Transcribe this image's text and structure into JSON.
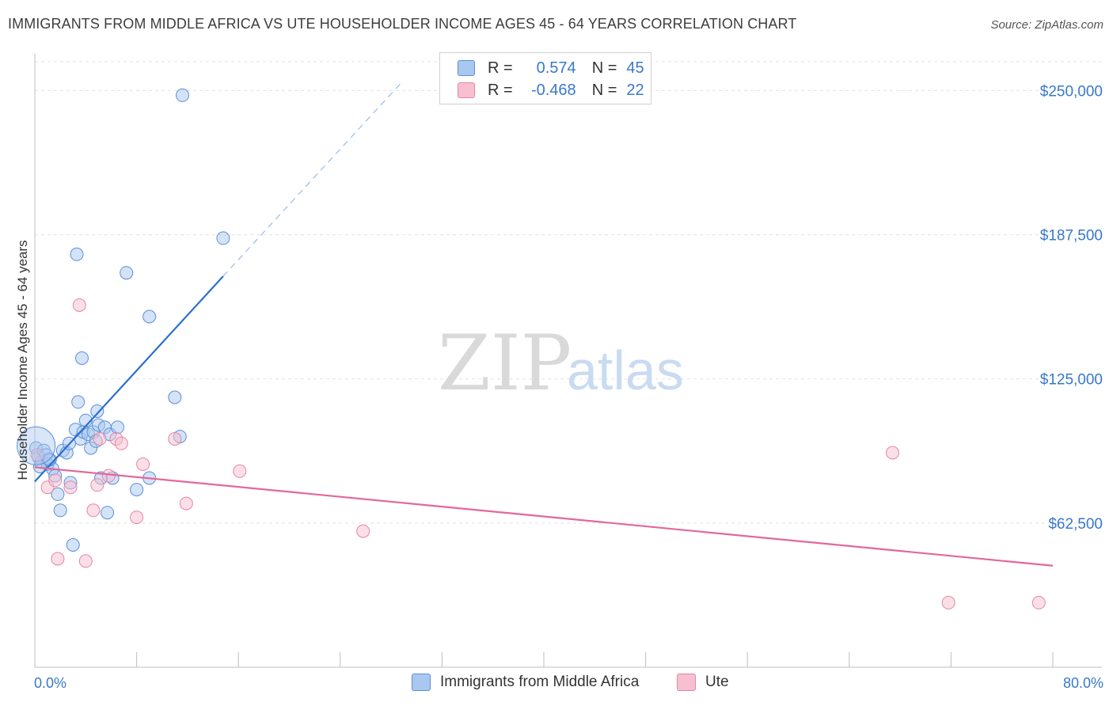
{
  "header": {
    "title": "IMMIGRANTS FROM MIDDLE AFRICA VS UTE HOUSEHOLDER INCOME AGES 45 - 64 YEARS CORRELATION CHART",
    "source": "Source: ZipAtlas.com"
  },
  "watermark": {
    "zip": "ZIP",
    "atlas": "atlas"
  },
  "legend": {
    "rows": [
      {
        "r_label": "R =",
        "r_value": "0.574",
        "n_label": "N =",
        "n_value": "45",
        "color": "#a9c8f0",
        "border": "#5b8fd6"
      },
      {
        "r_label": "R =",
        "r_value": "-0.468",
        "n_label": "N =",
        "n_value": "22",
        "color": "#f7bfd0",
        "border": "#e486a6"
      }
    ]
  },
  "bottom_legend": {
    "items": [
      {
        "label": "Immigrants from Middle Africa",
        "color": "#a9c8f0",
        "border": "#5b8fd6"
      },
      {
        "label": "Ute",
        "color": "#f7bfd0",
        "border": "#e486a6"
      }
    ]
  },
  "chart_data": {
    "type": "scatter",
    "title": "IMMIGRANTS FROM MIDDLE AFRICA VS UTE HOUSEHOLDER INCOME AGES 45 - 64 YEARS CORRELATION CHART",
    "xlabel": "",
    "ylabel": "Householder Income Ages 45 - 64 years",
    "xlim": [
      0,
      80
    ],
    "ylim": [
      0,
      262500
    ],
    "x_tick_labels": [
      "0.0%",
      "80.0%"
    ],
    "y_ticks": [
      62500,
      125000,
      187500,
      250000
    ],
    "y_tick_labels": [
      "$62,500",
      "$125,000",
      "$187,500",
      "$250,000"
    ],
    "grid": true,
    "series": [
      {
        "name": "Immigrants from Middle Africa",
        "color": "#a9c8f0",
        "stroke": "#5b8fd6",
        "points": [
          [
            0.1,
            95000
          ],
          [
            0.3,
            91000
          ],
          [
            0.5,
            89000
          ],
          [
            0.7,
            94000
          ],
          [
            0.9,
            92000
          ],
          [
            1.0,
            88000
          ],
          [
            1.2,
            90000
          ],
          [
            1.4,
            86000
          ],
          [
            1.6,
            83000
          ],
          [
            1.8,
            75000
          ],
          [
            2.0,
            68000
          ],
          [
            2.2,
            94000
          ],
          [
            2.5,
            93000
          ],
          [
            2.8,
            80000
          ],
          [
            3.0,
            53000
          ],
          [
            3.2,
            103000
          ],
          [
            3.4,
            115000
          ],
          [
            3.6,
            99000
          ],
          [
            3.8,
            102000
          ],
          [
            4.0,
            107000
          ],
          [
            4.2,
            101000
          ],
          [
            4.4,
            95000
          ],
          [
            3.3,
            179000
          ],
          [
            3.7,
            134000
          ],
          [
            4.6,
            102000
          ],
          [
            4.9,
            111000
          ],
          [
            5.0,
            105000
          ],
          [
            5.2,
            82000
          ],
          [
            5.5,
            104000
          ],
          [
            5.7,
            67000
          ],
          [
            5.9,
            101000
          ],
          [
            6.1,
            82000
          ],
          [
            6.5,
            104000
          ],
          [
            7.2,
            171000
          ],
          [
            8.0,
            77000
          ],
          [
            9.0,
            152000
          ],
          [
            9.0,
            82000
          ],
          [
            11.0,
            117000
          ],
          [
            11.4,
            100000
          ],
          [
            11.6,
            248000
          ],
          [
            14.8,
            186000
          ],
          [
            0.4,
            87000
          ],
          [
            1.1,
            90000
          ],
          [
            2.7,
            97000
          ],
          [
            4.8,
            98000
          ]
        ]
      },
      {
        "name": "Ute",
        "color": "#f7bfd0",
        "stroke": "#e486a6",
        "points": [
          [
            0.2,
            92000
          ],
          [
            1.0,
            78000
          ],
          [
            1.6,
            81000
          ],
          [
            1.8,
            47000
          ],
          [
            2.8,
            78000
          ],
          [
            3.5,
            157000
          ],
          [
            4.0,
            46000
          ],
          [
            4.6,
            68000
          ],
          [
            4.9,
            79000
          ],
          [
            5.1,
            99000
          ],
          [
            5.8,
            83000
          ],
          [
            6.4,
            99000
          ],
          [
            6.8,
            97000
          ],
          [
            8.0,
            65000
          ],
          [
            8.5,
            88000
          ],
          [
            11.0,
            99000
          ],
          [
            11.9,
            71000
          ],
          [
            16.1,
            85000
          ],
          [
            25.8,
            59000
          ],
          [
            67.4,
            93000
          ],
          [
            71.8,
            28000
          ],
          [
            78.9,
            28000
          ]
        ]
      }
    ],
    "trendlines": [
      {
        "series": "Immigrants from Middle Africa",
        "x": [
          0,
          14.8
        ],
        "y": [
          80500,
          169500
        ],
        "dashed_extension_to": [
          28.9,
          254000
        ]
      },
      {
        "series": "Ute",
        "x": [
          0,
          80
        ],
        "y": [
          86700,
          44000
        ]
      }
    ]
  }
}
